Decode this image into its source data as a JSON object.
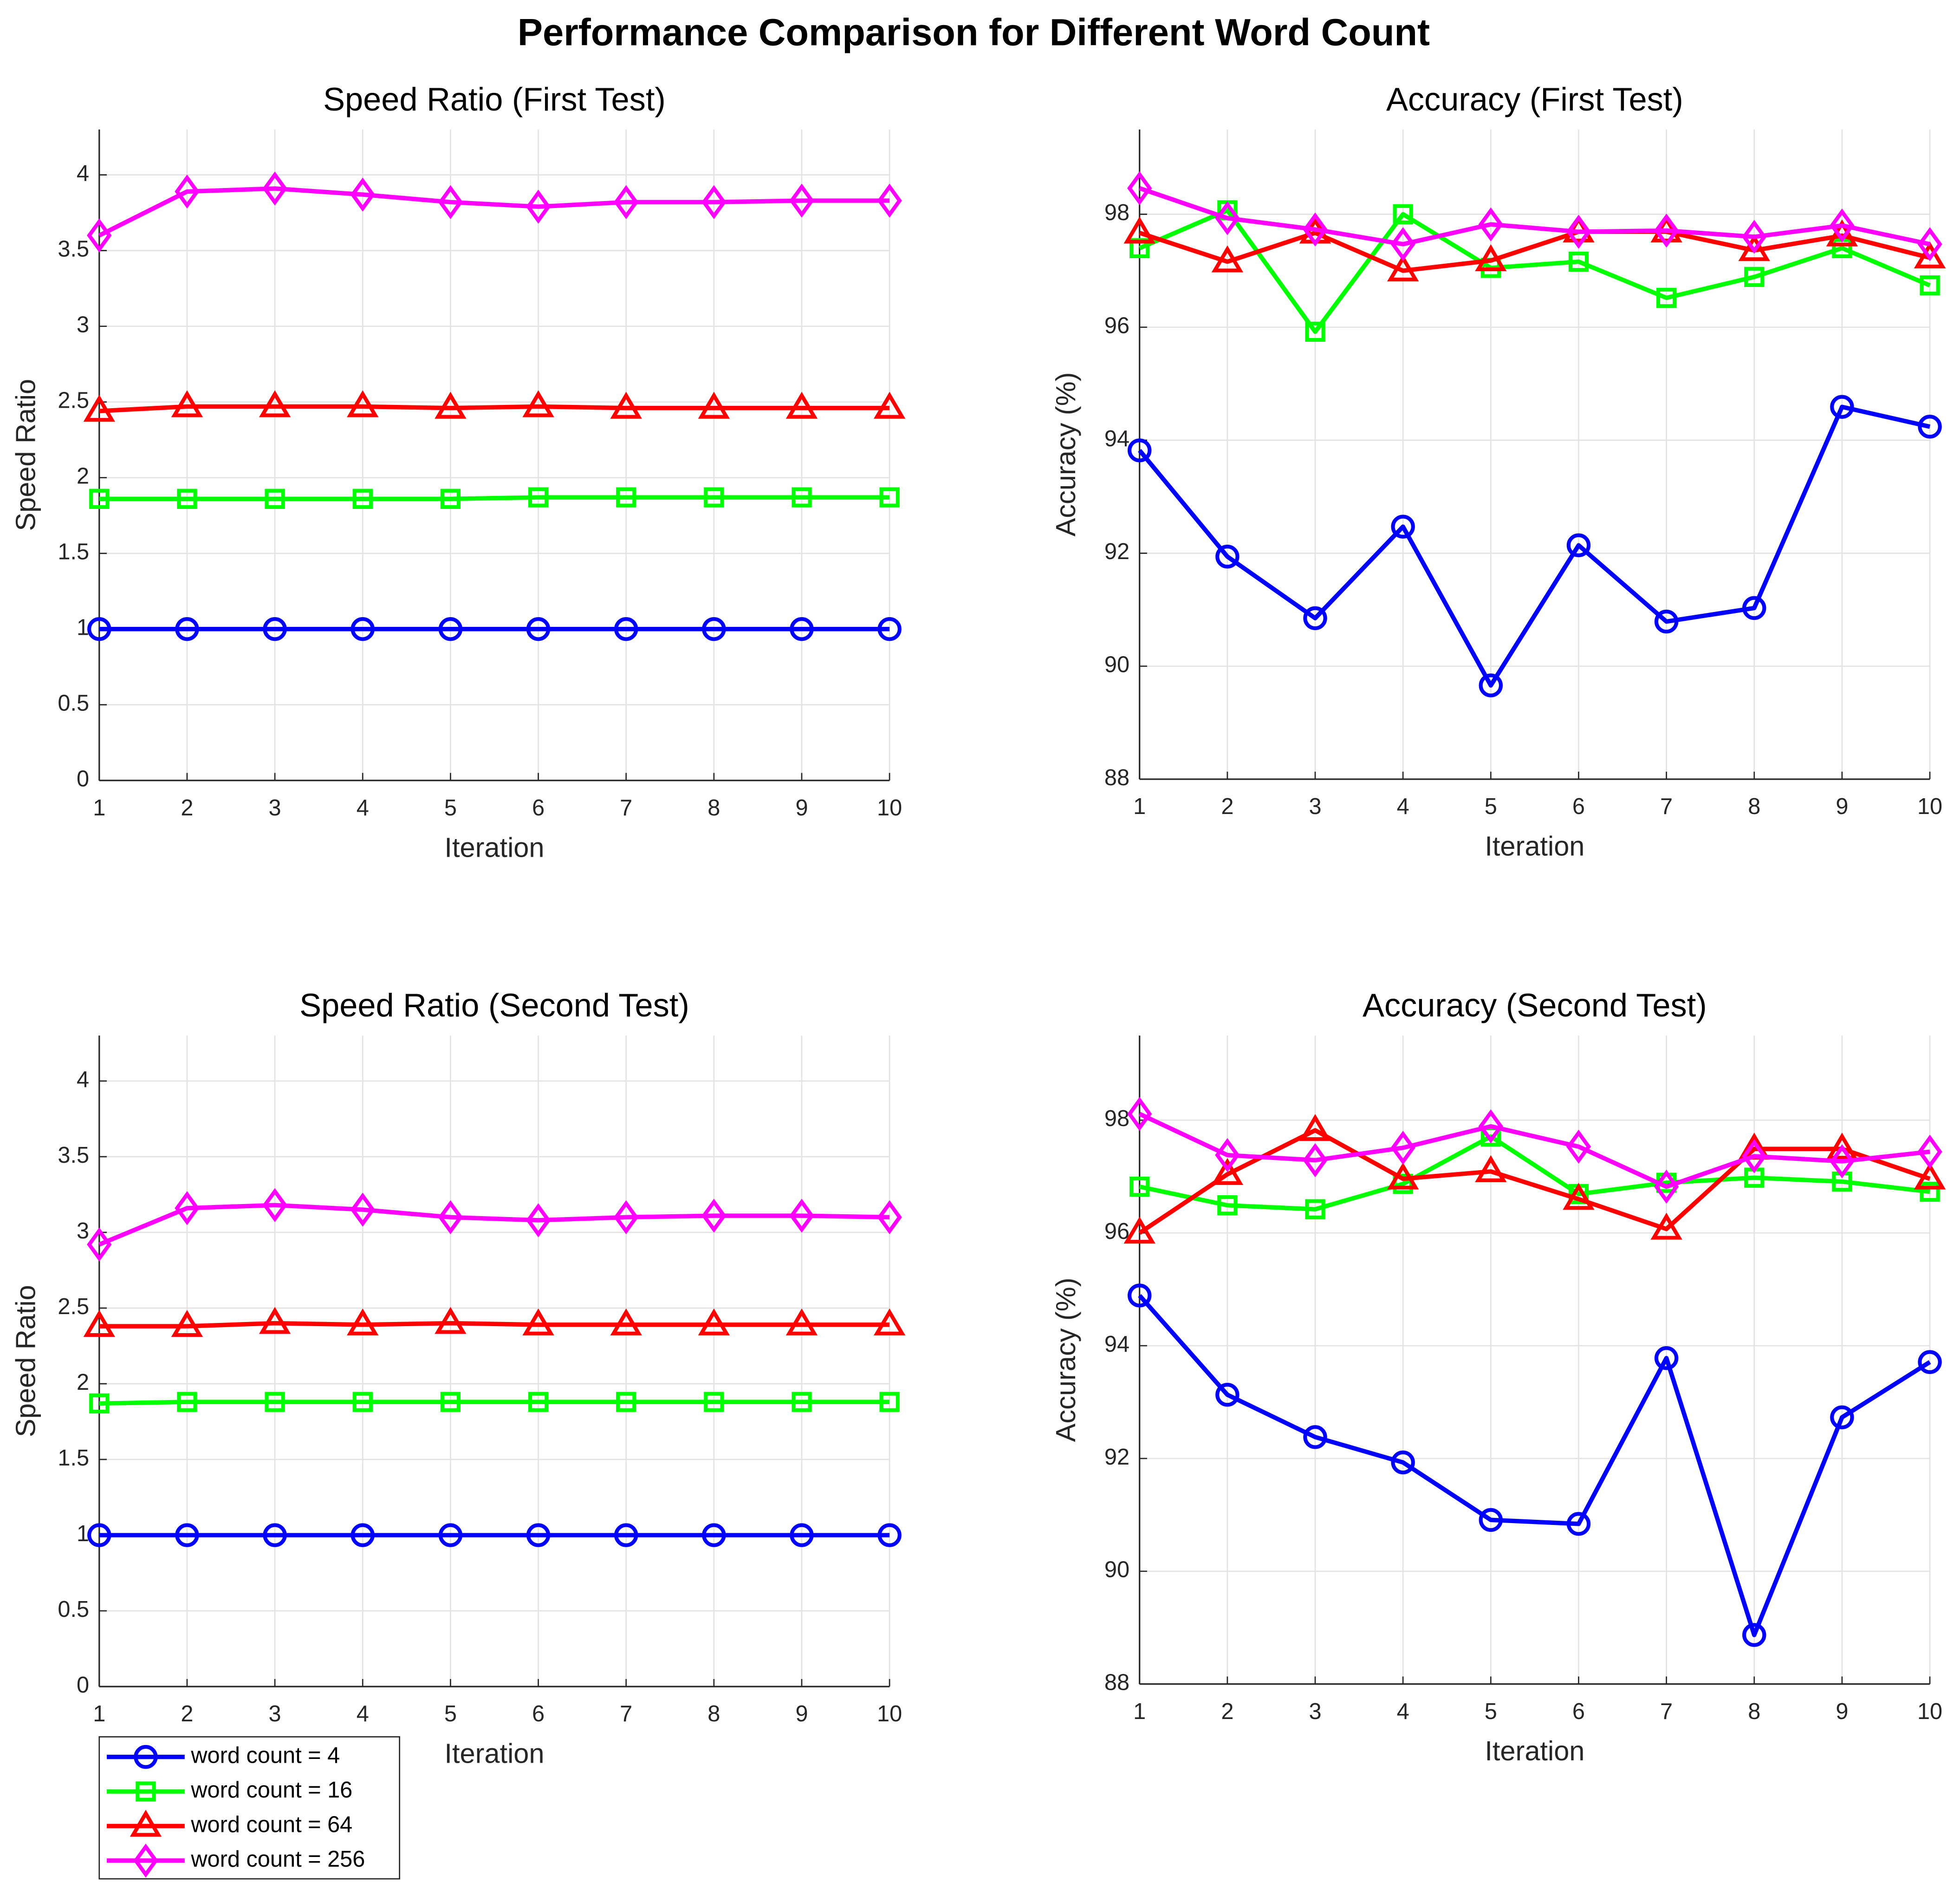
{
  "title": "Performance Comparison for Different Word Count",
  "chart_data": [
    {
      "type": "line",
      "title": "Speed Ratio (First Test)",
      "x_label": "Iteration",
      "y_label": "Speed Ratio",
      "x": [
        1,
        2,
        3,
        4,
        5,
        6,
        7,
        8,
        9,
        10
      ],
      "xlim": [
        1,
        10
      ],
      "xticks": [
        1,
        2,
        3,
        4,
        5,
        6,
        7,
        8,
        9,
        10
      ],
      "ylim": [
        0,
        4.3
      ],
      "yticks": [
        0,
        0.5,
        1,
        1.5,
        2,
        2.5,
        3,
        3.5,
        4
      ],
      "grid": true,
      "series": [
        {
          "name": "word count = 4",
          "color": "#0000ff",
          "marker": "circle",
          "values": [
            1,
            1,
            1,
            1,
            1,
            1,
            1,
            1,
            1,
            1
          ]
        },
        {
          "name": "word count = 16",
          "color": "#00ff00",
          "marker": "square",
          "values": [
            1.86,
            1.86,
            1.86,
            1.86,
            1.86,
            1.87,
            1.87,
            1.87,
            1.87,
            1.87
          ]
        },
        {
          "name": "word count = 64",
          "color": "#ff0000",
          "marker": "triangle",
          "values": [
            2.44,
            2.47,
            2.47,
            2.47,
            2.46,
            2.47,
            2.46,
            2.46,
            2.46,
            2.46
          ]
        },
        {
          "name": "word count = 256",
          "color": "#ff00ff",
          "marker": "diamond",
          "values": [
            3.6,
            3.89,
            3.91,
            3.87,
            3.82,
            3.79,
            3.82,
            3.82,
            3.83,
            3.83
          ]
        }
      ]
    },
    {
      "type": "line",
      "title": "Accuracy (First Test)",
      "x_label": "Iteration",
      "y_label": "Accuracy (%)",
      "x": [
        1,
        2,
        3,
        4,
        5,
        6,
        7,
        8,
        9,
        10
      ],
      "xlim": [
        1,
        10
      ],
      "xticks": [
        1,
        2,
        3,
        4,
        5,
        6,
        7,
        8,
        9,
        10
      ],
      "ylim": [
        88,
        99.5
      ],
      "yticks": [
        88,
        90,
        92,
        94,
        96,
        98
      ],
      "grid": true,
      "series": [
        {
          "name": "word count = 4",
          "color": "#0000ff",
          "marker": "circle",
          "values": [
            93.82,
            91.94,
            90.85,
            92.47,
            89.66,
            92.14,
            90.79,
            91.03,
            94.59,
            94.24
          ]
        },
        {
          "name": "word count = 16",
          "color": "#00ff00",
          "marker": "square",
          "values": [
            97.4,
            98.07,
            95.92,
            98.0,
            97.05,
            97.16,
            96.52,
            96.89,
            97.4,
            96.74
          ]
        },
        {
          "name": "word count = 64",
          "color": "#ff0000",
          "marker": "triangle",
          "values": [
            97.67,
            97.16,
            97.67,
            97.0,
            97.18,
            97.69,
            97.69,
            97.36,
            97.62,
            97.23
          ]
        },
        {
          "name": "word count = 256",
          "color": "#ff00ff",
          "marker": "diamond",
          "values": [
            98.46,
            97.93,
            97.73,
            97.47,
            97.82,
            97.69,
            97.71,
            97.6,
            97.8,
            97.47
          ]
        }
      ]
    },
    {
      "type": "line",
      "title": "Speed Ratio (Second Test)",
      "x_label": "Iteration",
      "y_label": "Speed Ratio",
      "x": [
        1,
        2,
        3,
        4,
        5,
        6,
        7,
        8,
        9,
        10
      ],
      "xlim": [
        1,
        10
      ],
      "xticks": [
        1,
        2,
        3,
        4,
        5,
        6,
        7,
        8,
        9,
        10
      ],
      "ylim": [
        0,
        4.3
      ],
      "yticks": [
        0,
        0.5,
        1,
        1.5,
        2,
        2.5,
        3,
        3.5,
        4
      ],
      "grid": true,
      "legend": "south",
      "series": [
        {
          "name": "word count = 4",
          "color": "#0000ff",
          "marker": "circle",
          "values": [
            1,
            1,
            1,
            1,
            1,
            1,
            1,
            1,
            1,
            1
          ]
        },
        {
          "name": "word count = 16",
          "color": "#00ff00",
          "marker": "square",
          "values": [
            1.87,
            1.88,
            1.88,
            1.88,
            1.88,
            1.88,
            1.88,
            1.88,
            1.88,
            1.88
          ]
        },
        {
          "name": "word count = 64",
          "color": "#ff0000",
          "marker": "triangle",
          "values": [
            2.38,
            2.38,
            2.4,
            2.39,
            2.4,
            2.39,
            2.39,
            2.39,
            2.39,
            2.39
          ]
        },
        {
          "name": "word count = 256",
          "color": "#ff00ff",
          "marker": "diamond",
          "values": [
            2.92,
            3.16,
            3.18,
            3.15,
            3.1,
            3.08,
            3.1,
            3.11,
            3.11,
            3.1
          ]
        }
      ]
    },
    {
      "type": "line",
      "title": "Accuracy (Second Test)",
      "x_label": "Iteration",
      "y_label": "Accuracy (%)",
      "x": [
        1,
        2,
        3,
        4,
        5,
        6,
        7,
        8,
        9,
        10
      ],
      "xlim": [
        1,
        10
      ],
      "xticks": [
        1,
        2,
        3,
        4,
        5,
        6,
        7,
        8,
        9,
        10
      ],
      "ylim": [
        88,
        99.5
      ],
      "yticks": [
        88,
        90,
        92,
        94,
        96,
        98
      ],
      "grid": true,
      "series": [
        {
          "name": "word count = 4",
          "color": "#0000ff",
          "marker": "circle",
          "values": [
            94.89,
            93.13,
            92.38,
            91.93,
            90.91,
            90.84,
            93.78,
            88.87,
            92.73,
            93.71
          ]
        },
        {
          "name": "word count = 16",
          "color": "#00ff00",
          "marker": "square",
          "values": [
            96.82,
            96.49,
            96.42,
            96.87,
            97.71,
            96.69,
            96.89,
            96.98,
            96.91,
            96.73
          ]
        },
        {
          "name": "word count = 64",
          "color": "#ff0000",
          "marker": "triangle",
          "values": [
            96.0,
            97.04,
            97.82,
            96.96,
            97.09,
            96.6,
            96.07,
            97.49,
            97.49,
            96.96
          ]
        },
        {
          "name": "word count = 256",
          "color": "#ff00ff",
          "marker": "diamond",
          "values": [
            98.11,
            97.38,
            97.29,
            97.51,
            97.89,
            97.53,
            96.82,
            97.36,
            97.27,
            97.44
          ]
        }
      ]
    }
  ]
}
